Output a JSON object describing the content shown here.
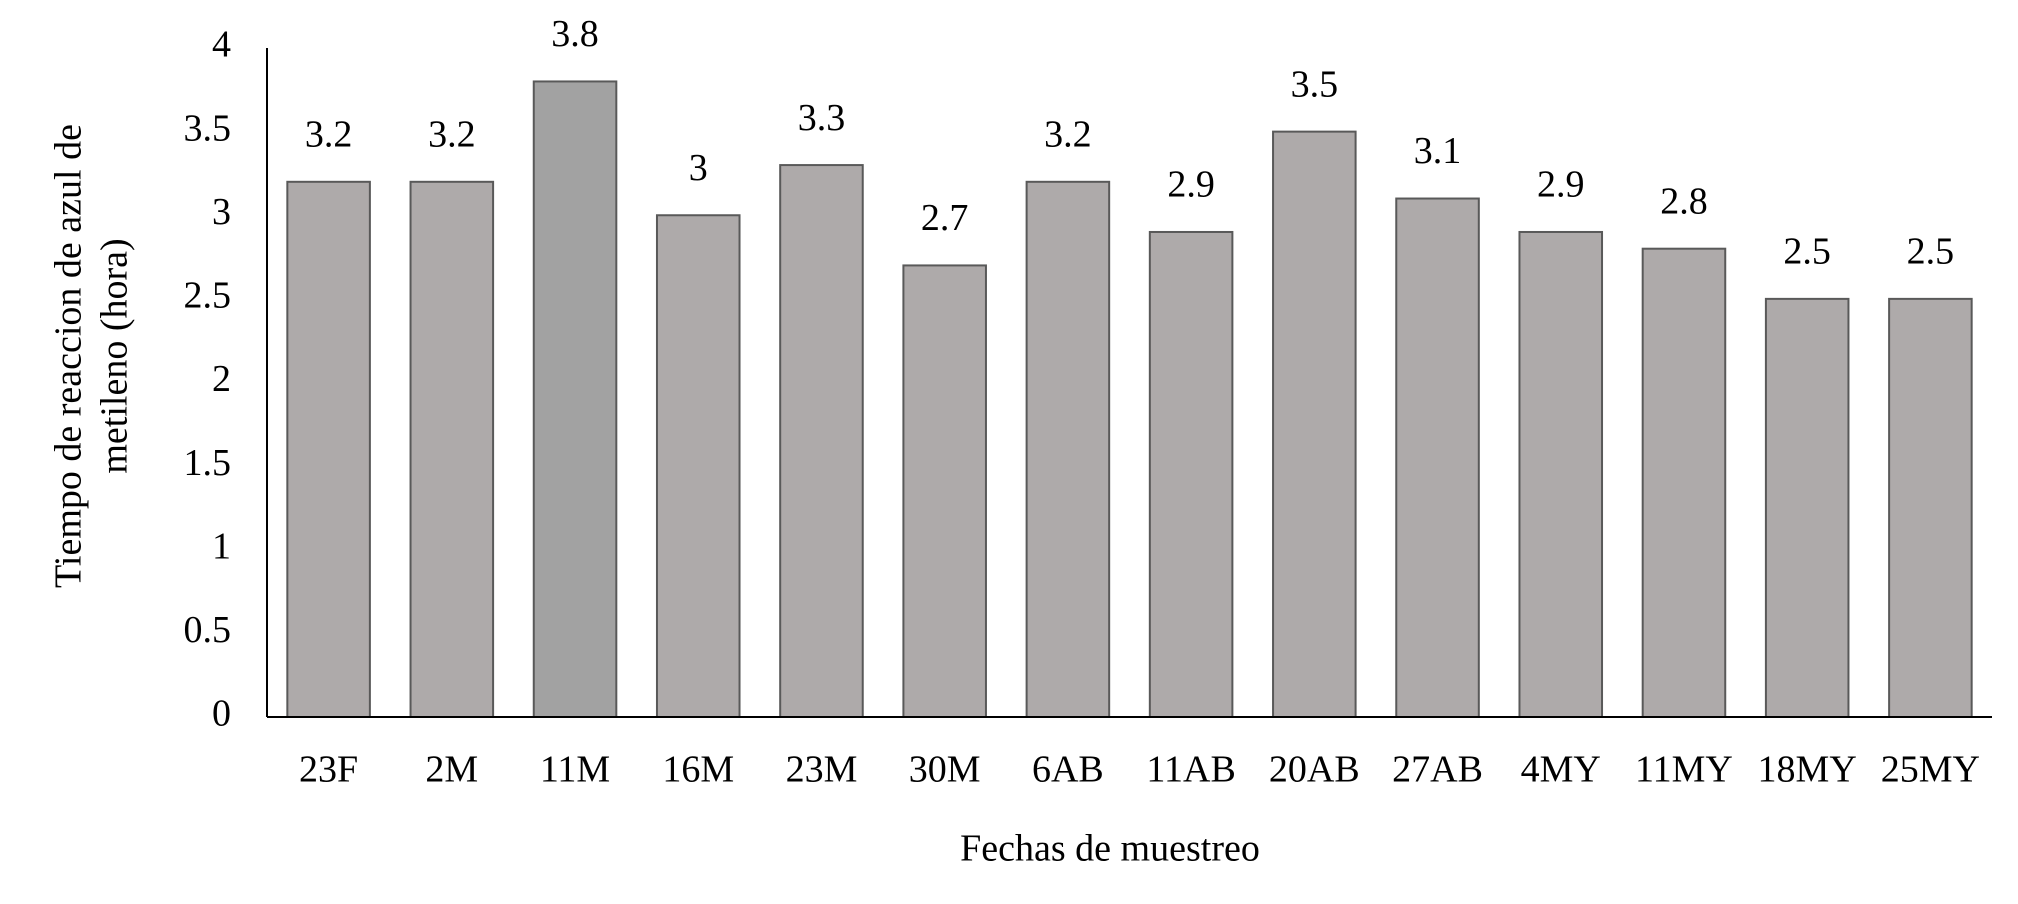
{
  "chart_data": {
    "type": "bar",
    "ylabel": [
      "Tiempo de reaccion de azul de",
      "metileno (hora)"
    ],
    "xlabel": "Fechas de muestreo",
    "categories": [
      "23F",
      "2M",
      "11M",
      "16M",
      "23M",
      "30M",
      "6AB",
      "11AB",
      "20AB",
      "27AB",
      "4MY",
      "11MY",
      "18MY",
      "25MY"
    ],
    "values": [
      3.2,
      3.2,
      3.8,
      3,
      3.3,
      2.7,
      3.2,
      2.9,
      3.5,
      3.1,
      2.9,
      2.8,
      2.5,
      2.5
    ],
    "colors": [
      "#aeaaaa",
      "#aeaaaa",
      "#a2a2a2",
      "#aeaaaa",
      "#aeaaaa",
      "#aeaaaa",
      "#aeaaaa",
      "#aeaaaa",
      "#aeaaaa",
      "#aeaaaa",
      "#aeaaaa",
      "#aeaaaa",
      "#aeaaaa",
      "#aeaaaa"
    ],
    "ylim": [
      0,
      4
    ],
    "yticks": [
      0,
      0.5,
      1,
      1.5,
      2,
      2.5,
      3,
      3.5,
      4
    ],
    "grid": false
  }
}
